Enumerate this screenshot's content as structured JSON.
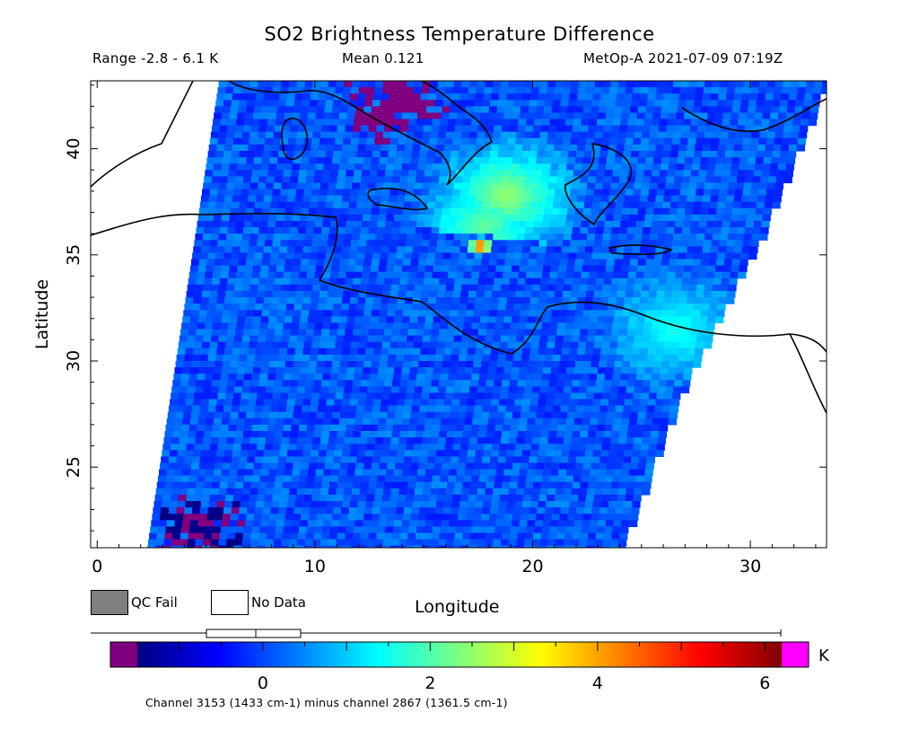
{
  "chart_data": {
    "type": "heatmap",
    "title": "SO2 Brightness Temperature Difference",
    "range_text": "Range -2.8 - 6.1 K",
    "mean_text": "Mean 0.121",
    "satellite_text": "MetOp-A 2021-07-09 07:19Z",
    "xlabel": "Longitude",
    "ylabel": "Latitude",
    "xlim": [
      -0.3,
      33.5
    ],
    "ylim": [
      21.2,
      43.2
    ],
    "x_ticks": [
      0,
      10,
      20,
      30
    ],
    "y_ticks": [
      25,
      30,
      35,
      40
    ],
    "colorbar": {
      "range": [
        -1.5,
        6.2
      ],
      "ticks": [
        0,
        2,
        4,
        6
      ],
      "unit": "K",
      "stops": [
        "#000080",
        "#0000ff",
        "#007fff",
        "#00ffff",
        "#7fff7f",
        "#ffff00",
        "#ff7f00",
        "#ff0000",
        "#800000"
      ],
      "low_color": "#800080",
      "high_color": "#ff00ff",
      "note": "Channel 3153 (1433 cm-1) minus channel 2867 (1361.5 cm-1)"
    },
    "legend": [
      {
        "label": "QC Fail",
        "color": "#808080"
      },
      {
        "label": "No Data",
        "color": "#ffffff"
      }
    ],
    "swath": {
      "left_edge": [
        [
          5.6,
          43.2
        ],
        [
          2.3,
          21.2
        ]
      ],
      "right_edge": [
        [
          33.5,
          43.2
        ],
        [
          30.5,
          36.0
        ],
        [
          27.0,
          29.0
        ],
        [
          24.0,
          21.2
        ]
      ]
    },
    "background_value": 0.1,
    "anomalies": [
      {
        "region": "plume core",
        "lon": 17.6,
        "lat": 35.4,
        "value": 5.8
      },
      {
        "region": "plume arm",
        "lon": 18.8,
        "lat": 37.8,
        "value": 2.6
      },
      {
        "region": "plume tail",
        "lon": 17.8,
        "lat": 36.4,
        "value": 2.2
      },
      {
        "region": "eastern Mediterranean",
        "lon": 26.5,
        "lat": 31.5,
        "value": 1.6
      },
      {
        "region": "Italy",
        "lon": 13.5,
        "lat": 42.0,
        "value": -1.8
      },
      {
        "region": "southwest corner",
        "lon": 4.5,
        "lat": 22.0,
        "value": -1.6
      }
    ]
  }
}
